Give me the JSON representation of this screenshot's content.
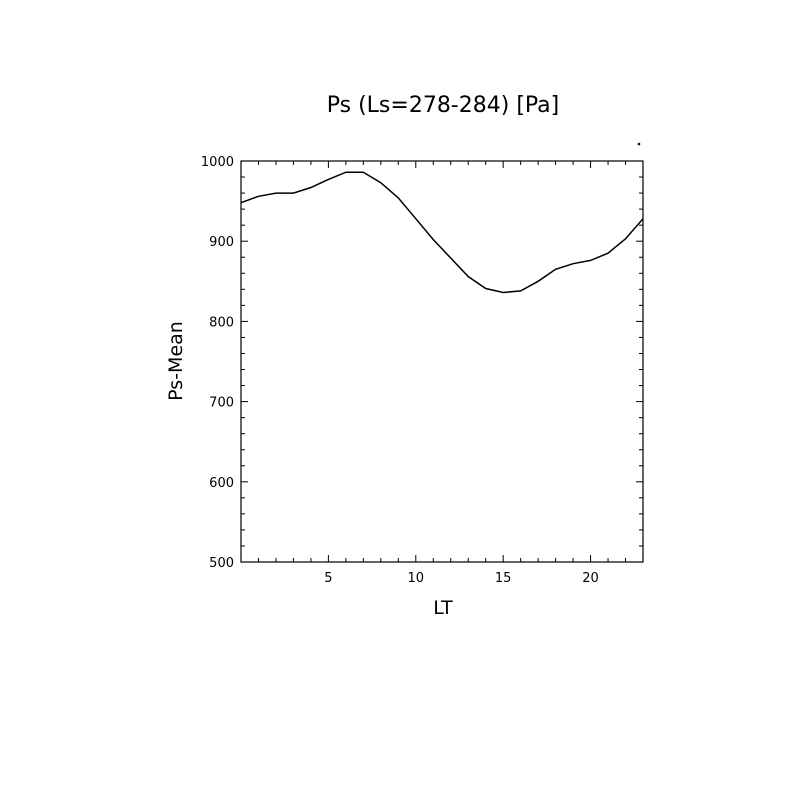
{
  "chart_data": {
    "type": "line",
    "title": "Ps (Ls=278-284) [Pa]",
    "xlabel": "LT",
    "ylabel": "Ps-Mean",
    "xlim": [
      0,
      23
    ],
    "ylim": [
      500,
      1000
    ],
    "x_ticks": [
      5,
      10,
      15,
      20
    ],
    "y_ticks": [
      500,
      600,
      700,
      800,
      900,
      1000
    ],
    "grid": false,
    "series": [
      {
        "x": [
          0,
          1,
          2,
          3,
          4,
          5,
          6,
          7,
          8,
          9,
          10,
          11,
          12,
          13,
          14,
          15,
          16,
          17,
          18,
          19,
          20,
          21,
          22,
          23
        ],
        "values": [
          948,
          956,
          960,
          960,
          967,
          977,
          986,
          986,
          973,
          954,
          928,
          902,
          879,
          856,
          841,
          836,
          838,
          850,
          865,
          872,
          876,
          885,
          903,
          928
        ]
      }
    ]
  }
}
